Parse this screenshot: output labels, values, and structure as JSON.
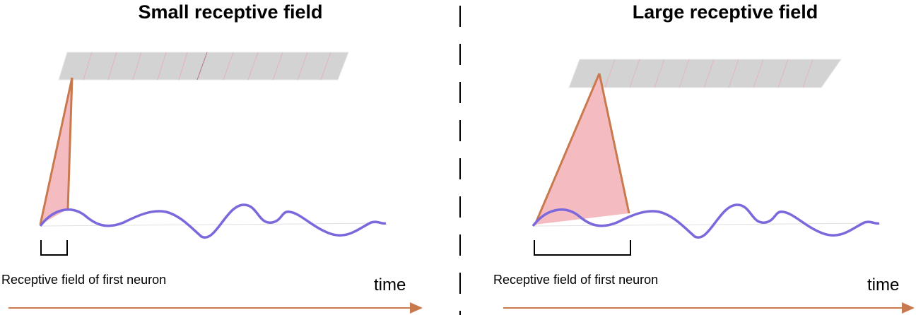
{
  "panels": [
    {
      "title": "Small receptive field",
      "caption": "Receptive field of first neuron",
      "axis_label": "time"
    },
    {
      "title": "Large receptive field",
      "caption": "Receptive field of first neuron",
      "axis_label": "time"
    }
  ],
  "colors": {
    "layer_fill": "#d3d3d3",
    "cone_fill": "#f4bcc0",
    "cone_edge": "#c87a4e",
    "signal": "#7b68dc",
    "arrow": "#c87a4e",
    "bracket": "#000000"
  }
}
